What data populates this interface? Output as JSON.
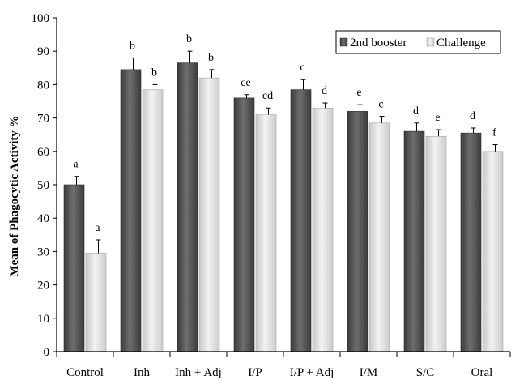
{
  "chart_data": {
    "type": "bar",
    "title": "",
    "xlabel": "",
    "ylabel": "Mean of Phagocytic Activity %",
    "ylim": [
      0,
      100
    ],
    "yticks": [
      0,
      10,
      20,
      30,
      40,
      50,
      60,
      70,
      80,
      90,
      100
    ],
    "grid": false,
    "legend_position": "top-right",
    "categories": [
      "Control",
      "Inh",
      "Inh + Adj",
      "I/P",
      "I/P + Adj",
      "I/M",
      "S/C",
      "Oral"
    ],
    "series": [
      {
        "name": "2nd booster",
        "color": "#555555",
        "values": [
          50,
          84.5,
          86.5,
          76,
          78.5,
          72,
          66,
          65.5
        ],
        "errors": [
          2.5,
          3.5,
          3.5,
          1,
          3,
          2,
          2.5,
          1.5
        ],
        "letters": [
          "a",
          "b",
          "b",
          "ce",
          "c",
          "e",
          "d",
          "d"
        ]
      },
      {
        "name": "Challenge",
        "color": "#dcdcdc",
        "values": [
          29.5,
          78.5,
          82,
          71,
          73,
          68.5,
          64.5,
          60
        ],
        "errors": [
          4,
          1.5,
          2.5,
          2,
          1.5,
          2,
          2,
          2
        ],
        "letters": [
          "a",
          "b",
          "b",
          "cd",
          "d",
          "c",
          "e",
          "f"
        ]
      }
    ]
  }
}
